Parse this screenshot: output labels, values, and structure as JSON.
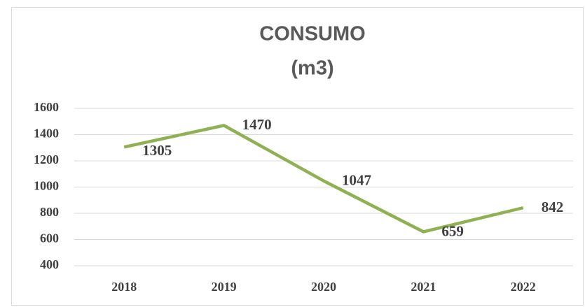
{
  "chart_data": {
    "type": "line",
    "title": "CONSUMO",
    "subtitle": "(m3)",
    "categories": [
      "2018",
      "2019",
      "2020",
      "2021",
      "2022"
    ],
    "series": [
      {
        "name": "CONSUMO",
        "color": "#8fb153",
        "values": [
          1305,
          1470,
          1047,
          659,
          842
        ]
      }
    ],
    "ylim": [
      400,
      1600
    ],
    "yticks": [
      400,
      600,
      800,
      1000,
      1200,
      1400,
      1600
    ],
    "grid": true
  }
}
